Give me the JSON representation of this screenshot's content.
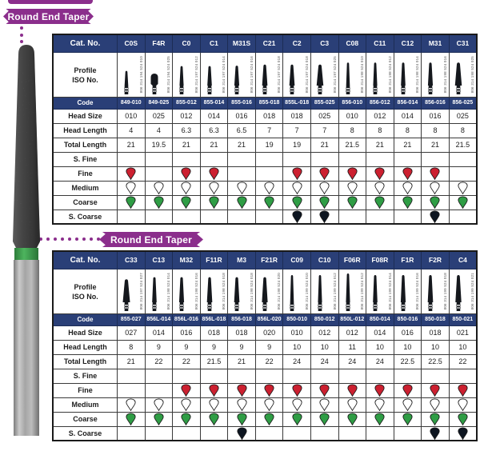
{
  "badges": {
    "top": "Round End Taper",
    "middle": "Round End Taper"
  },
  "row_labels": {
    "cat": "Cat. No.",
    "profile_line1": "Profile",
    "profile_line2": "ISO No.",
    "code": "Code",
    "head_size": "Head Size",
    "head_length": "Head Length",
    "total_length": "Total Length",
    "s_fine": "S. Fine",
    "fine": "Fine",
    "medium": "Medium",
    "coarse": "Coarse",
    "s_coarse": "S. Coarse"
  },
  "colors": {
    "header_blue": "#2a3f77",
    "badge_purple": "#8b2e8c",
    "grit_fine_red": "#cc2030",
    "grit_medium_white": "#ffffff",
    "grit_coarse_green": "#2f9d45",
    "grit_scoarse_black": "#0d1520",
    "photo_band_green": "#3aa34c"
  },
  "grit_fill": {
    "red": "#cc2030",
    "white": "#ffffff",
    "green": "#2f9d45",
    "black": "#0d1520"
  },
  "tables": [
    {
      "name": "round-end-taper-table-1",
      "columns": [
        {
          "cat": "C0S",
          "iso": "806 314 194 524 010",
          "code": "849-010",
          "head_size": "010",
          "head_length": "4",
          "total_length": "21",
          "s_fine": "",
          "fine": "red",
          "medium": "white",
          "coarse": "green",
          "s_coarse": "",
          "shape": "taper"
        },
        {
          "cat": "F4R",
          "iso": "806 314 194 524 025",
          "code": "849-025",
          "head_size": "025",
          "head_length": "4",
          "total_length": "19.5",
          "s_fine": "",
          "fine": "",
          "medium": "white",
          "coarse": "green",
          "s_coarse": "",
          "shape": "bud"
        },
        {
          "cat": "C0",
          "iso": "806 314 197 524 012",
          "code": "855-012",
          "head_size": "012",
          "head_length": "6.3",
          "total_length": "21",
          "s_fine": "",
          "fine": "red",
          "medium": "white",
          "coarse": "green",
          "s_coarse": "",
          "shape": "taper"
        },
        {
          "cat": "C1",
          "iso": "806 314 197 524 014",
          "code": "855-014",
          "head_size": "014",
          "head_length": "6.3",
          "total_length": "21",
          "s_fine": "",
          "fine": "red",
          "medium": "white",
          "coarse": "green",
          "s_coarse": "",
          "shape": "taper"
        },
        {
          "cat": "M31S",
          "iso": "806 314 197 524 016",
          "code": "855-016",
          "head_size": "016",
          "head_length": "6.5",
          "total_length": "21",
          "s_fine": "",
          "fine": "",
          "medium": "white",
          "coarse": "green",
          "s_coarse": "",
          "shape": "taper"
        },
        {
          "cat": "C21",
          "iso": "806 314 197 524 018",
          "code": "855-018",
          "head_size": "018",
          "head_length": "7",
          "total_length": "19",
          "s_fine": "",
          "fine": "",
          "medium": "white",
          "coarse": "green",
          "s_coarse": "",
          "shape": "taper"
        },
        {
          "cat": "C2",
          "iso": "806 314 197 524 018",
          "code": "855L-018",
          "head_size": "018",
          "head_length": "7",
          "total_length": "19",
          "s_fine": "",
          "fine": "red",
          "medium": "white",
          "coarse": "green",
          "s_coarse": "black",
          "shape": "taper"
        },
        {
          "cat": "C3",
          "iso": "806 314 197 524 025",
          "code": "855-025",
          "head_size": "025",
          "head_length": "7",
          "total_length": "21",
          "s_fine": "",
          "fine": "red",
          "medium": "white",
          "coarse": "green",
          "s_coarse": "black",
          "shape": "taper"
        },
        {
          "cat": "C08",
          "iso": "806 314 198 524 010",
          "code": "856-010",
          "head_size": "010",
          "head_length": "8",
          "total_length": "21.5",
          "s_fine": "",
          "fine": "red",
          "medium": "white",
          "coarse": "green",
          "s_coarse": "",
          "shape": "taper"
        },
        {
          "cat": "C11",
          "iso": "806 314 198 524 012",
          "code": "856-012",
          "head_size": "012",
          "head_length": "8",
          "total_length": "21",
          "s_fine": "",
          "fine": "red",
          "medium": "white",
          "coarse": "green",
          "s_coarse": "",
          "shape": "taper"
        },
        {
          "cat": "C12",
          "iso": "806 314 198 524 014",
          "code": "856-014",
          "head_size": "014",
          "head_length": "8",
          "total_length": "21",
          "s_fine": "",
          "fine": "red",
          "medium": "white",
          "coarse": "green",
          "s_coarse": "",
          "shape": "taper"
        },
        {
          "cat": "M31",
          "iso": "806 314 198 524 016",
          "code": "856-016",
          "head_size": "016",
          "head_length": "8",
          "total_length": "21",
          "s_fine": "",
          "fine": "red",
          "medium": "white",
          "coarse": "green",
          "s_coarse": "black",
          "shape": "taper"
        },
        {
          "cat": "C31",
          "iso": "806 314 198 524 025",
          "code": "856-025",
          "head_size": "025",
          "head_length": "8",
          "total_length": "21.5",
          "s_fine": "",
          "fine": "",
          "medium": "white",
          "coarse": "green",
          "s_coarse": "",
          "shape": "taper"
        }
      ]
    },
    {
      "name": "round-end-taper-table-2",
      "columns": [
        {
          "cat": "C33",
          "iso": "806 314 197 524 027",
          "code": "855-027",
          "head_size": "027",
          "head_length": "8",
          "total_length": "21",
          "s_fine": "",
          "fine": "",
          "medium": "white",
          "coarse": "green",
          "s_coarse": "",
          "shape": "taper"
        },
        {
          "cat": "C13",
          "iso": "806 314 198 524 014",
          "code": "856L-014",
          "head_size": "014",
          "head_length": "9",
          "total_length": "22",
          "s_fine": "",
          "fine": "",
          "medium": "white",
          "coarse": "green",
          "s_coarse": "",
          "shape": "taper"
        },
        {
          "cat": "M32",
          "iso": "806 314 198 524 016",
          "code": "856L-016",
          "head_size": "016",
          "head_length": "9",
          "total_length": "22",
          "s_fine": "",
          "fine": "red",
          "medium": "white",
          "coarse": "green",
          "s_coarse": "",
          "shape": "taper"
        },
        {
          "cat": "F11R",
          "iso": "806 314 198 524 018",
          "code": "856L-018",
          "head_size": "018",
          "head_length": "9",
          "total_length": "21.5",
          "s_fine": "",
          "fine": "red",
          "medium": "white",
          "coarse": "green",
          "s_coarse": "",
          "shape": "taper"
        },
        {
          "cat": "M3",
          "iso": "806 314 198 524 018",
          "code": "856-018",
          "head_size": "018",
          "head_length": "9",
          "total_length": "21",
          "s_fine": "",
          "fine": "red",
          "medium": "white",
          "coarse": "green",
          "s_coarse": "black",
          "shape": "taper"
        },
        {
          "cat": "F21R",
          "iso": "806 314 198 524 020",
          "code": "856L-020",
          "head_size": "020",
          "head_length": "9",
          "total_length": "22",
          "s_fine": "",
          "fine": "red",
          "medium": "white",
          "coarse": "green",
          "s_coarse": "",
          "shape": "taper"
        },
        {
          "cat": "C09",
          "iso": "806 314 199 524 010",
          "code": "850-010",
          "head_size": "010",
          "head_length": "10",
          "total_length": "24",
          "s_fine": "",
          "fine": "red",
          "medium": "white",
          "coarse": "green",
          "s_coarse": "",
          "shape": "taper"
        },
        {
          "cat": "C10",
          "iso": "806 314 199 524 012",
          "code": "850-012",
          "head_size": "012",
          "head_length": "10",
          "total_length": "24",
          "s_fine": "",
          "fine": "red",
          "medium": "white",
          "coarse": "green",
          "s_coarse": "",
          "shape": "taper"
        },
        {
          "cat": "F06R",
          "iso": "806 314 199 524 012",
          "code": "850L-012",
          "head_size": "012",
          "head_length": "11",
          "total_length": "24",
          "s_fine": "",
          "fine": "red",
          "medium": "white",
          "coarse": "green",
          "s_coarse": "",
          "shape": "taper"
        },
        {
          "cat": "F08R",
          "iso": "806 314 199 524 014",
          "code": "850-014",
          "head_size": "014",
          "head_length": "10",
          "total_length": "24",
          "s_fine": "",
          "fine": "red",
          "medium": "white",
          "coarse": "green",
          "s_coarse": "",
          "shape": "taper"
        },
        {
          "cat": "F1R",
          "iso": "806 314 199 524 016",
          "code": "850-016",
          "head_size": "016",
          "head_length": "10",
          "total_length": "22.5",
          "s_fine": "",
          "fine": "red",
          "medium": "white",
          "coarse": "green",
          "s_coarse": "",
          "shape": "taper"
        },
        {
          "cat": "F2R",
          "iso": "806 314 199 524 018",
          "code": "850-018",
          "head_size": "018",
          "head_length": "10",
          "total_length": "22.5",
          "s_fine": "",
          "fine": "red",
          "medium": "white",
          "coarse": "green",
          "s_coarse": "black",
          "shape": "taper"
        },
        {
          "cat": "C4",
          "iso": "806 314 199 524 021",
          "code": "850-021",
          "head_size": "021",
          "head_length": "10",
          "total_length": "22",
          "s_fine": "",
          "fine": "red",
          "medium": "white",
          "coarse": "green",
          "s_coarse": "black",
          "shape": "taper"
        }
      ]
    }
  ]
}
